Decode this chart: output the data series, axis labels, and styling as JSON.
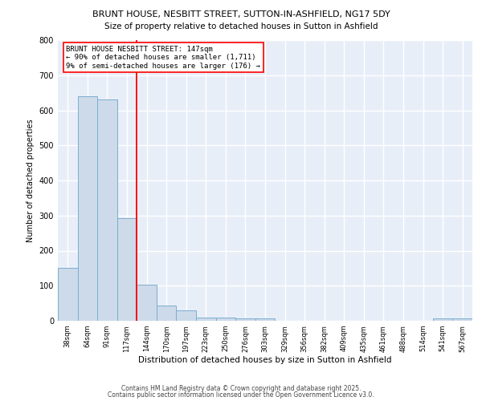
{
  "title1": "BRUNT HOUSE, NESBITT STREET, SUTTON-IN-ASHFIELD, NG17 5DY",
  "title2": "Size of property relative to detached houses in Sutton in Ashfield",
  "xlabel": "Distribution of detached houses by size in Sutton in Ashfield",
  "ylabel": "Number of detached properties",
  "bar_labels": [
    "38sqm",
    "64sqm",
    "91sqm",
    "117sqm",
    "144sqm",
    "170sqm",
    "197sqm",
    "223sqm",
    "250sqm",
    "276sqm",
    "303sqm",
    "329sqm",
    "356sqm",
    "382sqm",
    "409sqm",
    "435sqm",
    "461sqm",
    "488sqm",
    "514sqm",
    "541sqm",
    "567sqm"
  ],
  "bar_values": [
    150,
    640,
    630,
    293,
    103,
    44,
    29,
    10,
    10,
    7,
    7,
    0,
    0,
    0,
    0,
    0,
    0,
    0,
    0,
    7,
    7
  ],
  "bar_color": "#cddaea",
  "bar_edge_color": "#7aaed0",
  "vline_x": 3.5,
  "vline_color": "red",
  "annotation_text": "BRUNT HOUSE NESBITT STREET: 147sqm\n← 90% of detached houses are smaller (1,711)\n9% of semi-detached houses are larger (176) →",
  "annotation_box_color": "white",
  "annotation_box_edge": "red",
  "ylim": [
    0,
    800
  ],
  "yticks": [
    0,
    100,
    200,
    300,
    400,
    500,
    600,
    700,
    800
  ],
  "background_color": "#e8eef8",
  "grid_color": "#ffffff",
  "footer1": "Contains HM Land Registry data © Crown copyright and database right 2025.",
  "footer2": "Contains public sector information licensed under the Open Government Licence v3.0."
}
